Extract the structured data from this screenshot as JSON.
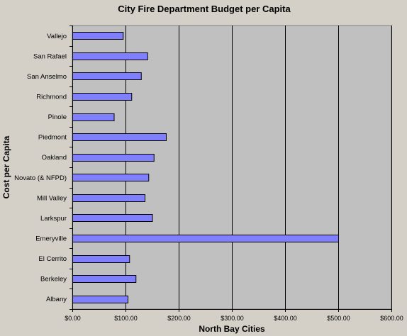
{
  "chart_data": {
    "type": "bar",
    "orientation": "horizontal",
    "title": "City Fire Department Budget per Capita",
    "xlabel": "North Bay Cities",
    "ylabel": "Cost per Capita",
    "categories": [
      "Vallejo",
      "San Rafael",
      "San Anselmo",
      "Richmond",
      "Pinole",
      "Piedmont",
      "Oakland",
      "Novato (& NFPD)",
      "Mill Valley",
      "Larkspur",
      "Emeryville",
      "El Cerrito",
      "Berkeley",
      "Albany"
    ],
    "values": [
      95,
      141,
      129,
      111,
      78,
      176,
      153,
      143,
      136,
      150,
      500,
      107,
      119,
      104
    ],
    "xlim": [
      0,
      600
    ],
    "xticks": [
      0,
      100,
      200,
      300,
      400,
      500,
      600
    ],
    "xtick_labels": [
      "$0.00",
      "$100.00",
      "$200.00",
      "$300.00",
      "$400.00",
      "$500.00",
      "$600.00"
    ],
    "grid": "vertical",
    "legend": "none",
    "colors": {
      "bar_fill": "#8080ff",
      "bar_stroke": "#000000",
      "plot_background": "#c0c0c0",
      "page_background": "#d4d0c8",
      "gridline": "#000000"
    }
  }
}
